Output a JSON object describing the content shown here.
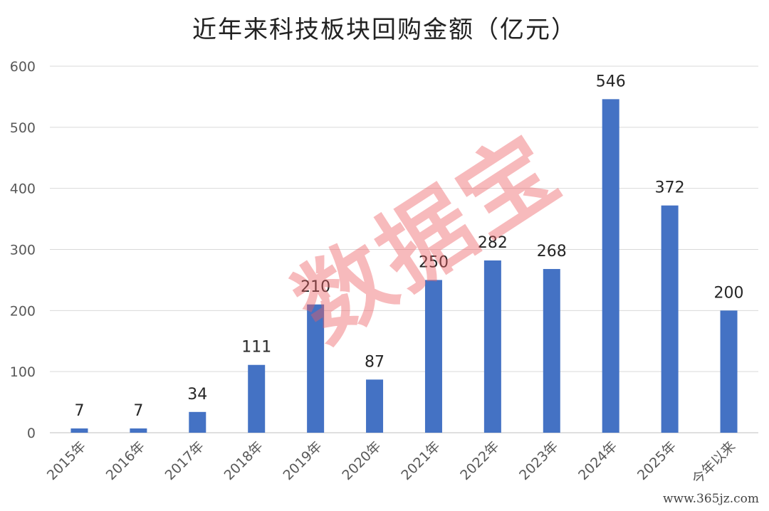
{
  "chart_data": {
    "type": "bar",
    "title": "近年来科技板块回购金额（亿元）",
    "categories": [
      "2015年",
      "2016年",
      "2017年",
      "2018年",
      "2019年",
      "2020年",
      "2021年",
      "2022年",
      "2023年",
      "2024年",
      "2025年",
      "今年以来"
    ],
    "values": [
      7,
      7,
      34,
      111,
      210,
      87,
      250,
      282,
      268,
      546,
      372,
      200
    ],
    "ylim": [
      0,
      600
    ],
    "yticks": [
      0,
      100,
      200,
      300,
      400,
      500,
      600
    ],
    "grid": true,
    "bar_color": "#4472C4",
    "xlabel": "",
    "ylabel": ""
  },
  "watermark": "数据宝",
  "site_mark": "www.365jz.com"
}
